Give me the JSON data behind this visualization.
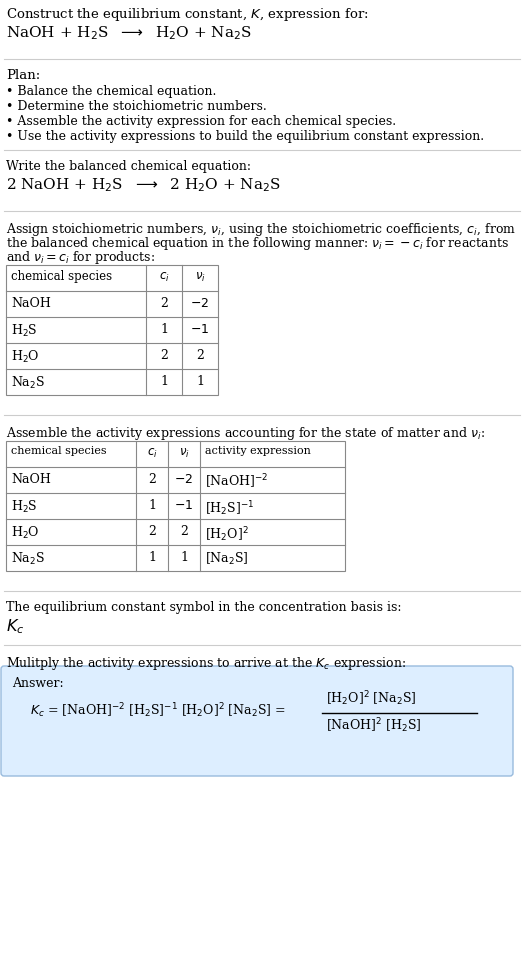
{
  "bg_color": "#ffffff",
  "text_color": "#000000",
  "table_border_color": "#888888",
  "answer_box_color": "#ddeeff",
  "answer_box_border": "#99bbdd",
  "section1_title": "Construct the equilibrium constant, $K$, expression for:",
  "section1_eq": "NaOH + H$_2$S  $\\longrightarrow$  H$_2$O + Na$_2$S",
  "section2_title": "Plan:",
  "section2_bullets": [
    "• Balance the chemical equation.",
    "• Determine the stoichiometric numbers.",
    "• Assemble the activity expression for each chemical species.",
    "• Use the activity expressions to build the equilibrium constant expression."
  ],
  "section3_title": "Write the balanced chemical equation:",
  "section3_eq": "2 NaOH + H$_2$S  $\\longrightarrow$  2 H$_2$O + Na$_2$S",
  "section4_intro": "Assign stoichiometric numbers, $\\nu_i$, using the stoichiometric coefficients, $c_i$, from",
  "section4_line2": "the balanced chemical equation in the following manner: $\\nu_i = -c_i$ for reactants",
  "section4_line3": "and $\\nu_i = c_i$ for products:",
  "table1_headers": [
    "chemical species",
    "$c_i$",
    "$\\nu_i$"
  ],
  "table1_rows": [
    [
      "NaOH",
      "2",
      "$-2$"
    ],
    [
      "H$_2$S",
      "1",
      "$-1$"
    ],
    [
      "H$_2$O",
      "2",
      "2"
    ],
    [
      "Na$_2$S",
      "1",
      "1"
    ]
  ],
  "section5_title": "Assemble the activity expressions accounting for the state of matter and $\\nu_i$:",
  "table2_headers": [
    "chemical species",
    "$c_i$",
    "$\\nu_i$",
    "activity expression"
  ],
  "table2_rows": [
    [
      "NaOH",
      "2",
      "$-2$",
      "[NaOH]$^{-2}$"
    ],
    [
      "H$_2$S",
      "1",
      "$-1$",
      "[H$_2$S]$^{-1}$"
    ],
    [
      "H$_2$O",
      "2",
      "2",
      "[H$_2$O]$^2$"
    ],
    [
      "Na$_2$S",
      "1",
      "1",
      "[Na$_2$S]"
    ]
  ],
  "section6_title": "The equilibrium constant symbol in the concentration basis is:",
  "section6_symbol": "$K_c$",
  "section7_title": "Mulitply the activity expressions to arrive at the $K_c$ expression:",
  "answer_label": "Answer:",
  "answer_line1": "$K_c$ = [NaOH]$^{-2}$ [H$_2$S]$^{-1}$ [H$_2$O]$^2$ [Na$_2$S] =",
  "answer_frac_num": "[H$_2$O]$^2$ [Na$_2$S]",
  "answer_frac_den": "[NaOH]$^2$ [H$_2$S]"
}
